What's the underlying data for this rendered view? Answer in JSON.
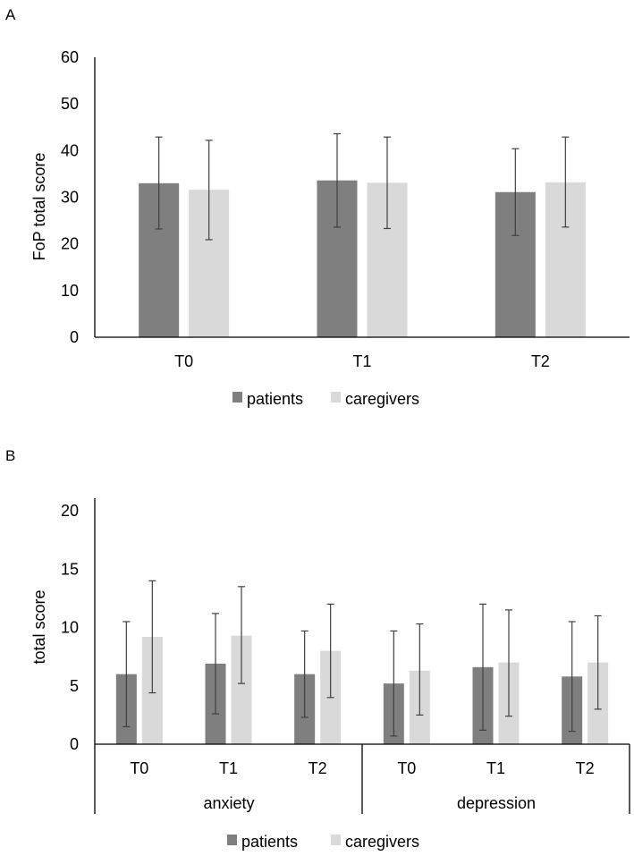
{
  "colors": {
    "patients": "#7f7f7f",
    "caregivers": "#d9d9d9",
    "axis": "#000000",
    "error_bar": "#404040"
  },
  "chart_data": [
    {
      "panel_label": "A",
      "type": "bar",
      "ylabel": "FoP total score",
      "ylim": [
        0,
        60
      ],
      "yticks": [
        0,
        10,
        20,
        30,
        40,
        50,
        60
      ],
      "categories": [
        "T0",
        "T1",
        "T2"
      ],
      "grid": false,
      "legend": "bottom",
      "series": [
        {
          "name": "patients",
          "values": [
            33.0,
            33.6,
            31.1
          ],
          "err_low": [
            23.2,
            23.6,
            21.8
          ],
          "err_high": [
            42.9,
            43.6,
            40.4
          ]
        },
        {
          "name": "caregivers",
          "values": [
            31.6,
            33.1,
            33.2
          ],
          "err_low": [
            20.9,
            23.3,
            23.6
          ],
          "err_high": [
            42.2,
            42.9,
            42.9
          ]
        }
      ]
    },
    {
      "panel_label": "B",
      "type": "bar",
      "ylabel": "total score",
      "ylim": [
        0,
        20
      ],
      "yticks": [
        0,
        5,
        10,
        15,
        20
      ],
      "categories": [
        "T0",
        "T1",
        "T2",
        "T0",
        "T1",
        "T2"
      ],
      "groups": [
        {
          "label": "anxiety",
          "count": 3
        },
        {
          "label": "depression",
          "count": 3
        }
      ],
      "grid": false,
      "legend": "bottom",
      "series": [
        {
          "name": "patients",
          "values": [
            6.0,
            6.9,
            6.0,
            5.2,
            6.6,
            5.8
          ],
          "err_low": [
            1.5,
            2.6,
            2.3,
            0.7,
            1.2,
            1.1
          ],
          "err_high": [
            10.5,
            11.2,
            9.7,
            9.7,
            12.0,
            10.5
          ]
        },
        {
          "name": "caregivers",
          "values": [
            9.2,
            9.3,
            8.0,
            6.3,
            7.0,
            7.0
          ],
          "err_low": [
            4.4,
            5.2,
            4.0,
            2.5,
            2.4,
            3.0
          ],
          "err_high": [
            14.0,
            13.5,
            12.0,
            10.3,
            11.5,
            11.0
          ]
        }
      ]
    }
  ]
}
